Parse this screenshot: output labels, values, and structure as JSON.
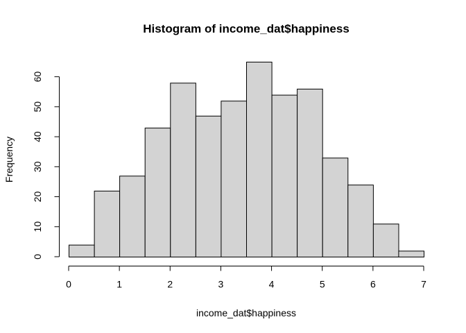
{
  "chart_data": {
    "type": "bar",
    "title": "Histogram of income_dat$happiness",
    "xlabel": "income_dat$happiness",
    "ylabel": "Frequency",
    "bin_edges": [
      0,
      0.5,
      1,
      1.5,
      2,
      2.5,
      3,
      3.5,
      4,
      4.5,
      5,
      5.5,
      6,
      6.5,
      7
    ],
    "values": [
      4,
      22,
      27,
      43,
      58,
      47,
      52,
      65,
      54,
      56,
      33,
      24,
      11,
      2
    ],
    "xlim": [
      0,
      7
    ],
    "ylim": [
      0,
      65
    ],
    "x_ticks": [
      0,
      1,
      2,
      3,
      4,
      5,
      6,
      7
    ],
    "y_ticks": [
      0,
      10,
      20,
      30,
      40,
      50,
      60
    ],
    "grid": false,
    "colors": {
      "bar_fill": "#d3d3d3",
      "bar_stroke": "#000000"
    }
  }
}
